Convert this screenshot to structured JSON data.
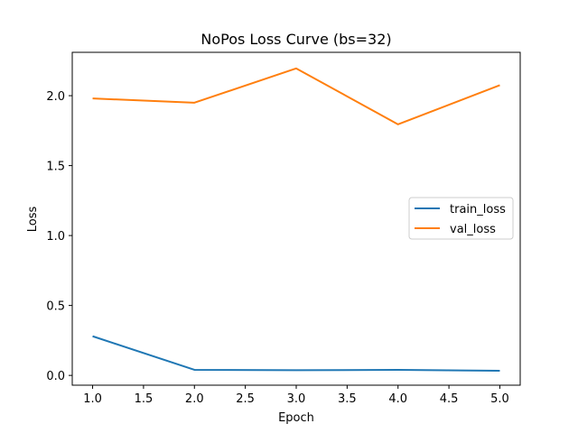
{
  "chart_data": {
    "type": "line",
    "title": "NoPos Loss Curve (bs=32)",
    "xlabel": "Epoch",
    "ylabel": "Loss",
    "x": [
      1,
      2,
      3,
      4,
      5
    ],
    "xlim": [
      0.8,
      5.2
    ],
    "ylim": [
      -0.07,
      2.31
    ],
    "xticks": [
      1.0,
      1.5,
      2.0,
      2.5,
      3.0,
      3.5,
      4.0,
      4.5,
      5.0
    ],
    "xtick_labels": [
      "1.0",
      "1.5",
      "2.0",
      "2.5",
      "3.0",
      "3.5",
      "4.0",
      "4.5",
      "5.0"
    ],
    "yticks": [
      0.0,
      0.5,
      1.0,
      1.5,
      2.0
    ],
    "ytick_labels": [
      "0.0",
      "0.5",
      "1.0",
      "1.5",
      "2.0"
    ],
    "grid": false,
    "legend_position": "center-right",
    "series": [
      {
        "name": "train_loss",
        "color": "#1f77b4",
        "values": [
          0.28,
          0.04,
          0.037,
          0.04,
          0.033
        ]
      },
      {
        "name": "val_loss",
        "color": "#ff7f0e",
        "values": [
          1.98,
          1.95,
          2.195,
          1.795,
          2.075
        ]
      }
    ]
  }
}
